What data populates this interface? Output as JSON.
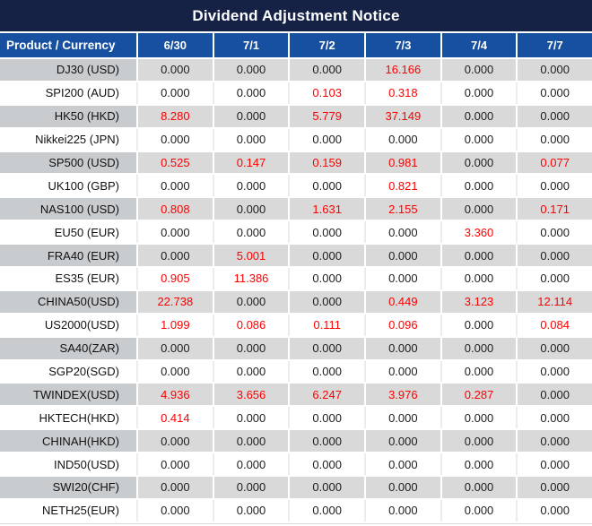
{
  "title": "Dividend Adjustment Notice",
  "colors": {
    "title_bg": "#152246",
    "header_bg": "#1750a0",
    "stripe_gray": "#d9d9d9",
    "product_stripe_gray": "#c9cccf",
    "highlight_red": "#fe0000",
    "text_black": "#1d1d1d",
    "header_text": "#ffffff"
  },
  "table": {
    "product_header": "Product / Currency",
    "date_headers": [
      "6/30",
      "7/1",
      "7/2",
      "7/3",
      "7/4",
      "7/7"
    ],
    "rows": [
      {
        "product": "DJ30 (USD)",
        "values": [
          "0.000",
          "0.000",
          "0.000",
          "16.166",
          "0.000",
          "0.000"
        ],
        "red": [
          false,
          false,
          false,
          true,
          false,
          false
        ]
      },
      {
        "product": "SPI200 (AUD)",
        "values": [
          "0.000",
          "0.000",
          "0.103",
          "0.318",
          "0.000",
          "0.000"
        ],
        "red": [
          false,
          false,
          true,
          true,
          false,
          false
        ]
      },
      {
        "product": "HK50 (HKD)",
        "values": [
          "8.280",
          "0.000",
          "5.779",
          "37.149",
          "0.000",
          "0.000"
        ],
        "red": [
          true,
          false,
          true,
          true,
          false,
          false
        ]
      },
      {
        "product": "Nikkei225 (JPN)",
        "values": [
          "0.000",
          "0.000",
          "0.000",
          "0.000",
          "0.000",
          "0.000"
        ],
        "red": [
          false,
          false,
          false,
          false,
          false,
          false
        ]
      },
      {
        "product": "SP500 (USD)",
        "values": [
          "0.525",
          "0.147",
          "0.159",
          "0.981",
          "0.000",
          "0.077"
        ],
        "red": [
          true,
          true,
          true,
          true,
          false,
          true
        ]
      },
      {
        "product": "UK100 (GBP)",
        "values": [
          "0.000",
          "0.000",
          "0.000",
          "0.821",
          "0.000",
          "0.000"
        ],
        "red": [
          false,
          false,
          false,
          true,
          false,
          false
        ]
      },
      {
        "product": "NAS100 (USD)",
        "values": [
          "0.808",
          "0.000",
          "1.631",
          "2.155",
          "0.000",
          "0.171"
        ],
        "red": [
          true,
          false,
          true,
          true,
          false,
          true
        ]
      },
      {
        "product": "EU50 (EUR)",
        "values": [
          "0.000",
          "0.000",
          "0.000",
          "0.000",
          "3.360",
          "0.000"
        ],
        "red": [
          false,
          false,
          false,
          false,
          true,
          false
        ]
      },
      {
        "product": "FRA40 (EUR)",
        "values": [
          "0.000",
          "5.001",
          "0.000",
          "0.000",
          "0.000",
          "0.000"
        ],
        "red": [
          false,
          true,
          false,
          false,
          false,
          false
        ]
      },
      {
        "product": "ES35 (EUR)",
        "values": [
          "0.905",
          "11.386",
          "0.000",
          "0.000",
          "0.000",
          "0.000"
        ],
        "red": [
          true,
          true,
          false,
          false,
          false,
          false
        ]
      },
      {
        "product": "CHINA50(USD)",
        "values": [
          "22.738",
          "0.000",
          "0.000",
          "0.449",
          "3.123",
          "12.114"
        ],
        "red": [
          true,
          false,
          false,
          true,
          true,
          true
        ]
      },
      {
        "product": "US2000(USD)",
        "values": [
          "1.099",
          "0.086",
          "0.111",
          "0.096",
          "0.000",
          "0.084"
        ],
        "red": [
          true,
          true,
          true,
          true,
          false,
          true
        ]
      },
      {
        "product": "SA40(ZAR)",
        "values": [
          "0.000",
          "0.000",
          "0.000",
          "0.000",
          "0.000",
          "0.000"
        ],
        "red": [
          false,
          false,
          false,
          false,
          false,
          false
        ]
      },
      {
        "product": "SGP20(SGD)",
        "values": [
          "0.000",
          "0.000",
          "0.000",
          "0.000",
          "0.000",
          "0.000"
        ],
        "red": [
          false,
          false,
          false,
          false,
          false,
          false
        ]
      },
      {
        "product": "TWINDEX(USD)",
        "values": [
          "4.936",
          "3.656",
          "6.247",
          "3.976",
          "0.287",
          "0.000"
        ],
        "red": [
          true,
          true,
          true,
          true,
          true,
          false
        ]
      },
      {
        "product": "HKTECH(HKD)",
        "values": [
          "0.414",
          "0.000",
          "0.000",
          "0.000",
          "0.000",
          "0.000"
        ],
        "red": [
          true,
          false,
          false,
          false,
          false,
          false
        ]
      },
      {
        "product": "CHINAH(HKD)",
        "values": [
          "0.000",
          "0.000",
          "0.000",
          "0.000",
          "0.000",
          "0.000"
        ],
        "red": [
          false,
          false,
          false,
          false,
          false,
          false
        ]
      },
      {
        "product": "IND50(USD)",
        "values": [
          "0.000",
          "0.000",
          "0.000",
          "0.000",
          "0.000",
          "0.000"
        ],
        "red": [
          false,
          false,
          false,
          false,
          false,
          false
        ]
      },
      {
        "product": "SWI20(CHF)",
        "values": [
          "0.000",
          "0.000",
          "0.000",
          "0.000",
          "0.000",
          "0.000"
        ],
        "red": [
          false,
          false,
          false,
          false,
          false,
          false
        ]
      },
      {
        "product": "NETH25(EUR)",
        "values": [
          "0.000",
          "0.000",
          "0.000",
          "0.000",
          "0.000",
          "0.000"
        ],
        "red": [
          false,
          false,
          false,
          false,
          false,
          false
        ]
      }
    ]
  }
}
